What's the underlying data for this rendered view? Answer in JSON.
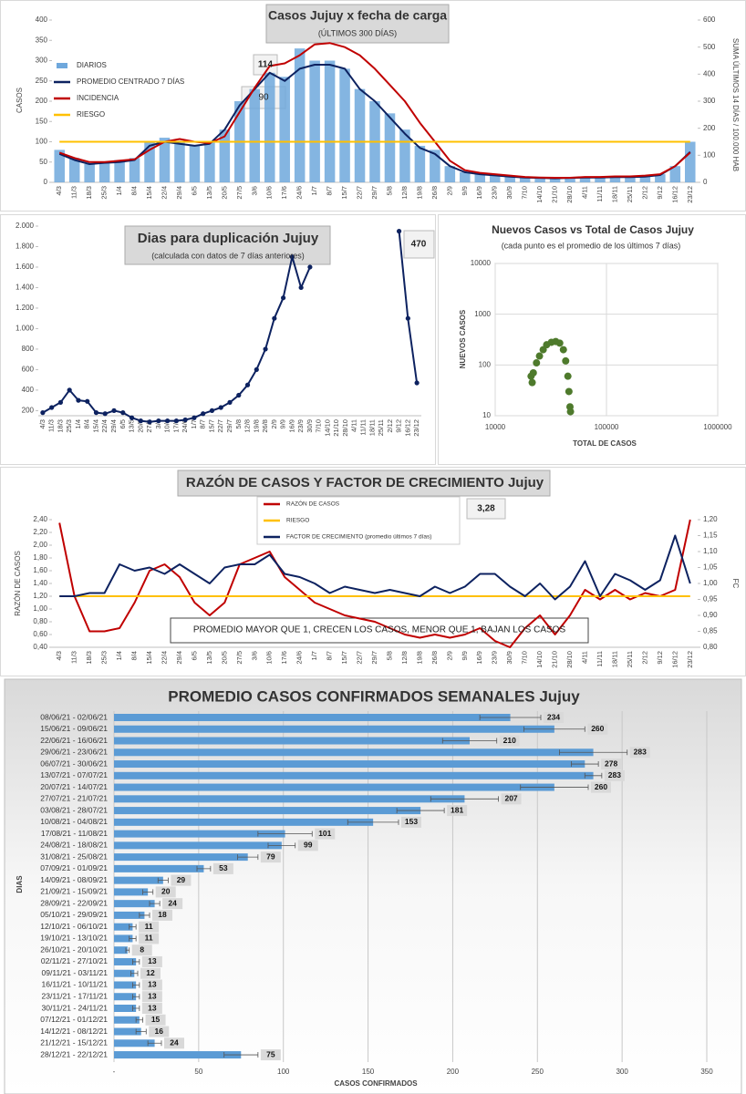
{
  "chart_data": [
    {
      "type": "combo",
      "title": "Casos Jujuy x fecha de carga",
      "subtitle": "(ÚLTIMOS 300 DÍAS)",
      "y_label": "CASOS",
      "y2_label": "SUMA  ÚLTIMOS 14 DÍAS / 100.000 HAB",
      "categories": [
        "4/3",
        "11/3",
        "18/3",
        "25/3",
        "1/4",
        "8/4",
        "15/4",
        "22/4",
        "29/4",
        "6/5",
        "13/5",
        "20/5",
        "27/5",
        "3/6",
        "10/6",
        "17/6",
        "24/6",
        "1/7",
        "8/7",
        "15/7",
        "22/7",
        "29/7",
        "5/8",
        "12/8",
        "19/8",
        "26/8",
        "2/9",
        "9/9",
        "16/9",
        "23/9",
        "30/9",
        "7/10",
        "14/10",
        "21/10",
        "28/10",
        "4/11",
        "11/11",
        "18/11",
        "25/11",
        "2/12",
        "9/12",
        "16/12",
        "23/12"
      ],
      "series": [
        {
          "name": "DIARIOS",
          "type": "bar",
          "color": "#6fa8dc",
          "values": [
            80,
            60,
            45,
            50,
            55,
            60,
            100,
            110,
            100,
            90,
            100,
            130,
            200,
            230,
            270,
            260,
            330,
            300,
            300,
            280,
            230,
            200,
            170,
            130,
            90,
            80,
            40,
            25,
            20,
            18,
            15,
            12,
            10,
            10,
            10,
            12,
            12,
            13,
            13,
            15,
            20,
            40,
            100
          ]
        },
        {
          "name": "PROMEDIO CENTRADO 7 DÍAS",
          "type": "line",
          "color": "#0d2260",
          "values": [
            70,
            55,
            45,
            48,
            50,
            55,
            90,
            100,
            95,
            90,
            95,
            130,
            190,
            230,
            270,
            250,
            280,
            290,
            290,
            280,
            230,
            200,
            160,
            120,
            85,
            70,
            40,
            25,
            20,
            17,
            14,
            12,
            11,
            10,
            11,
            12,
            12,
            13,
            13,
            14,
            18,
            40,
            75
          ]
        },
        {
          "name": "INCIDENCIA",
          "type": "line",
          "axis": "y2",
          "color": "#c00000",
          "values": [
            110,
            90,
            75,
            75,
            80,
            85,
            120,
            150,
            160,
            150,
            145,
            170,
            260,
            350,
            430,
            440,
            470,
            510,
            515,
            500,
            470,
            420,
            360,
            300,
            220,
            150,
            80,
            45,
            35,
            30,
            25,
            20,
            18,
            17,
            17,
            20,
            20,
            22,
            22,
            25,
            30,
            60,
            110
          ]
        },
        {
          "name": "RIESGO",
          "type": "line",
          "color": "#ffc000",
          "values": [
            100,
            100,
            100,
            100,
            100,
            100,
            100,
            100,
            100,
            100,
            100,
            100,
            100,
            100,
            100,
            100,
            100,
            100,
            100,
            100,
            100,
            100,
            100,
            100,
            100,
            100,
            100,
            100,
            100,
            100,
            100,
            100,
            100,
            100,
            100,
            100,
            100,
            100,
            100,
            100,
            100,
            100,
            100
          ]
        }
      ],
      "ylim": [
        0,
        400
      ],
      "yticks": [
        0,
        50,
        100,
        150,
        200,
        250,
        300,
        350,
        400
      ],
      "y2lim": [
        0,
        600
      ],
      "y2ticks": [
        0,
        100,
        200,
        300,
        400,
        500,
        600
      ],
      "annotations": [
        "114",
        "90"
      ]
    },
    {
      "type": "line",
      "title": "Dias para duplicación Jujuy",
      "subtitle": "(calculada con datos de 7 días anteriores)",
      "categories": [
        "4/3",
        "11/3",
        "18/3",
        "25/3",
        "1/4",
        "8/4",
        "15/4",
        "22/4",
        "29/4",
        "6/5",
        "13/5",
        "20/5",
        "27/5",
        "3/6",
        "10/6",
        "17/6",
        "24/6",
        "1/7",
        "8/7",
        "15/7",
        "22/7",
        "29/7",
        "5/8",
        "12/8",
        "19/8",
        "26/8",
        "2/9",
        "9/9",
        "16/9",
        "23/9",
        "30/9",
        "7/10",
        "14/10",
        "21/10",
        "28/10",
        "4/11",
        "11/11",
        "18/11",
        "25/11",
        "2/12",
        "9/12",
        "16/12",
        "23/12"
      ],
      "series": [
        {
          "type": "line",
          "markers": true,
          "color": "#0d2260",
          "values": [
            180,
            230,
            280,
            400,
            300,
            290,
            180,
            170,
            200,
            180,
            130,
            100,
            90,
            100,
            100,
            100,
            110,
            130,
            170,
            200,
            230,
            280,
            350,
            450,
            600,
            800,
            1100,
            1300,
            1700,
            1400,
            1600,
            null,
            null,
            null,
            null,
            null,
            null,
            null,
            null,
            null,
            1950,
            1100,
            470
          ]
        }
      ],
      "ylim": [
        150,
        2000
      ],
      "yticks": [
        200,
        400,
        600,
        800,
        {
          "value": 1000,
          "label": "1.000"
        },
        {
          "value": 1200,
          "label": "1.200"
        },
        {
          "value": 1400,
          "label": "1.400"
        },
        {
          "value": 1600,
          "label": "1.600"
        },
        {
          "value": 1800,
          "label": "1.800"
        },
        {
          "value": 2000,
          "label": "2.000"
        }
      ],
      "annotations": [
        "470"
      ]
    },
    {
      "type": "scatter",
      "title": "Nuevos Casos vs Total de Casos Jujuy",
      "subtitle": "(cada punto es el promedio de los últimos 7 días)",
      "x_label": "TOTAL DE CASOS",
      "y_label": "NUEVOS CASOS",
      "color": "#4e7a2c",
      "xscale": "log",
      "yscale": "log",
      "grid": true,
      "x": [
        21000,
        21500,
        22000,
        23500,
        25000,
        27000,
        29000,
        32000,
        35000,
        38000,
        41000,
        43000,
        45000,
        46000,
        47000,
        47500
      ],
      "values": [
        60,
        45,
        70,
        110,
        150,
        200,
        250,
        280,
        290,
        270,
        200,
        120,
        60,
        30,
        15,
        12
      ],
      "xlim": [
        10000,
        1000000
      ],
      "xticks": [
        10000,
        100000,
        1000000
      ],
      "ylim": [
        10,
        10000
      ],
      "yticks": [
        10,
        100,
        1000,
        10000
      ]
    },
    {
      "type": "combo",
      "title": "RAZÓN DE CASOS Y FACTOR DE CRECIMIENTO Jujuy",
      "y_label": "RAZÓN DE CASOS",
      "y2_label": "FC",
      "categories": [
        "4/3",
        "11/3",
        "18/3",
        "25/3",
        "1/4",
        "8/4",
        "15/4",
        "22/4",
        "29/4",
        "6/5",
        "13/5",
        "20/5",
        "27/5",
        "3/6",
        "10/6",
        "17/6",
        "24/6",
        "1/7",
        "8/7",
        "15/7",
        "22/7",
        "29/7",
        "5/8",
        "12/8",
        "19/8",
        "26/8",
        "2/9",
        "9/9",
        "16/9",
        "23/9",
        "30/9",
        "7/10",
        "14/10",
        "21/10",
        "28/10",
        "4/11",
        "11/11",
        "18/11",
        "25/11",
        "2/12",
        "9/12",
        "16/12",
        "23/12"
      ],
      "series": [
        {
          "name": "RAZÓN DE CASOS",
          "type": "line",
          "color": "#c00000",
          "values": [
            2.35,
            1.2,
            0.65,
            0.65,
            0.7,
            1.1,
            1.6,
            1.7,
            1.5,
            1.1,
            0.9,
            1.1,
            1.7,
            1.8,
            1.9,
            1.5,
            1.3,
            1.1,
            1.0,
            0.9,
            0.85,
            0.8,
            0.7,
            0.6,
            0.55,
            0.6,
            0.55,
            0.6,
            0.7,
            0.5,
            0.4,
            0.7,
            0.9,
            0.6,
            0.9,
            1.3,
            1.15,
            1.3,
            1.15,
            1.25,
            1.2,
            1.3,
            2.4
          ]
        },
        {
          "name": "RIESGO",
          "type": "line",
          "color": "#ffc000",
          "values": [
            1.2,
            1.2,
            1.2,
            1.2,
            1.2,
            1.2,
            1.2,
            1.2,
            1.2,
            1.2,
            1.2,
            1.2,
            1.2,
            1.2,
            1.2,
            1.2,
            1.2,
            1.2,
            1.2,
            1.2,
            1.2,
            1.2,
            1.2,
            1.2,
            1.2,
            1.2,
            1.2,
            1.2,
            1.2,
            1.2,
            1.2,
            1.2,
            1.2,
            1.2,
            1.2,
            1.2,
            1.2,
            1.2,
            1.2,
            1.2,
            1.2,
            1.2,
            1.2
          ]
        },
        {
          "name": "FACTOR DE CRECIMIENTO (promedio últimos 7 días)",
          "type": "line",
          "axis": "y2",
          "color": "#0d2260",
          "values": [
            0.96,
            0.96,
            0.97,
            0.97,
            1.06,
            1.04,
            1.05,
            1.03,
            1.06,
            1.03,
            1.0,
            1.05,
            1.06,
            1.06,
            1.09,
            1.03,
            1.02,
            1.0,
            0.97,
            0.99,
            0.98,
            0.97,
            0.98,
            0.97,
            0.96,
            0.99,
            0.97,
            0.99,
            1.03,
            1.03,
            0.99,
            0.96,
            1.0,
            0.95,
            0.99,
            1.07,
            0.96,
            1.03,
            1.01,
            0.98,
            1.01,
            1.15,
            1.0
          ]
        }
      ],
      "ylim": [
        0.4,
        2.4
      ],
      "yticks": [
        {
          "value": 0.4,
          "label": "0,40"
        },
        {
          "value": 0.6,
          "label": "0,60"
        },
        {
          "value": 0.8,
          "label": "0,80"
        },
        {
          "value": 1.0,
          "label": "1,00"
        },
        {
          "value": 1.2,
          "label": "1,20"
        },
        {
          "value": 1.4,
          "label": "1,40"
        },
        {
          "value": 1.6,
          "label": "1,60"
        },
        {
          "value": 1.8,
          "label": "1,80"
        },
        {
          "value": 2.0,
          "label": "2,00"
        },
        {
          "value": 2.2,
          "label": "2,20"
        },
        {
          "value": 2.4,
          "label": "2,40"
        }
      ],
      "y2lim": [
        0.8,
        1.2
      ],
      "y2ticks": [
        {
          "value": 0.8,
          "label": "0,80"
        },
        {
          "value": 0.85,
          "label": "0,85"
        },
        {
          "value": 0.9,
          "label": "0,90"
        },
        {
          "value": 0.95,
          "label": "0,95"
        },
        {
          "value": 1.0,
          "label": "1,00"
        },
        {
          "value": 1.05,
          "label": "1,05"
        },
        {
          "value": 1.1,
          "label": "1,10"
        },
        {
          "value": 1.15,
          "label": "1,15"
        },
        {
          "value": 1.2,
          "label": "1,20"
        }
      ],
      "annotations": [
        "3,28",
        "PROMEDIO MAYOR QUE 1, CRECEN LOS CASOS, MENOR QUE 1, BAJAN LOS CASOS"
      ]
    },
    {
      "type": "bar",
      "orientation": "horizontal",
      "title": "PROMEDIO CASOS CONFIRMADOS SEMANALES Jujuy",
      "x_label": "CASOS CONFIRMADOS",
      "y_label": "DIAS",
      "color": "#5b9bd5",
      "grid": true,
      "categories": [
        "08/06/21 - 02/06/21",
        "15/06/21 - 09/06/21",
        "22/06/21 - 16/06/21",
        "29/06/21 - 23/06/21",
        "06/07/21 - 30/06/21",
        "13/07/21 - 07/07/21",
        "20/07/21 - 14/07/21",
        "27/07/21 - 21/07/21",
        "03/08/21 - 28/07/21",
        "10/08/21 - 04/08/21",
        "17/08/21 - 11/08/21",
        "24/08/21 - 18/08/21",
        "31/08/21 - 25/08/21",
        "07/09/21 - 01/09/21",
        "14/09/21 - 08/09/21",
        "21/09/21 - 15/09/21",
        "28/09/21 - 22/09/21",
        "05/10/21 - 29/09/21",
        "12/10/21 - 06/10/21",
        "19/10/21 - 13/10/21",
        "26/10/21 - 20/10/21",
        "02/11/21 - 27/10/21",
        "09/11/21 - 03/11/21",
        "16/11/21 - 10/11/21",
        "23/11/21 - 17/11/21",
        "30/11/21 - 24/11/21",
        "07/12/21 - 01/12/21",
        "14/12/21 - 08/12/21",
        "21/12/21 - 15/12/21",
        "28/12/21 - 22/12/21"
      ],
      "values": [
        234,
        260,
        210,
        283,
        278,
        283,
        260,
        207,
        181,
        153,
        101,
        99,
        79,
        53,
        29,
        20,
        24,
        18,
        11,
        11,
        8,
        13,
        12,
        13,
        13,
        13,
        15,
        16,
        24,
        75
      ],
      "errors": [
        18,
        18,
        16,
        20,
        8,
        5,
        20,
        20,
        14,
        15,
        16,
        8,
        6,
        4,
        3,
        3,
        3,
        3,
        2,
        2,
        1,
        2,
        2,
        2,
        2,
        2,
        2,
        3,
        4,
        10
      ],
      "xlim": [
        0,
        350
      ],
      "xticks": [
        {
          "value": 0,
          "label": "-"
        },
        50,
        100,
        150,
        200,
        250,
        300,
        350
      ]
    }
  ]
}
